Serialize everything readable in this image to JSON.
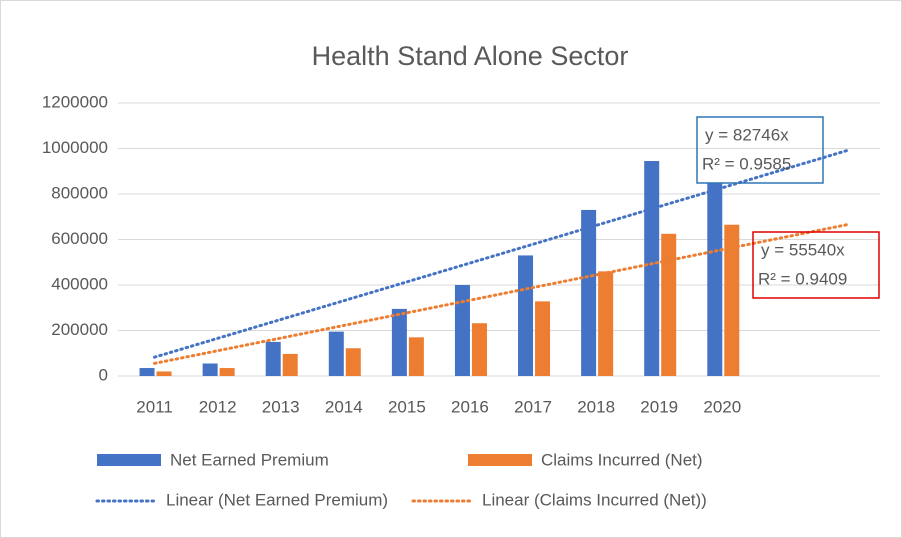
{
  "chart_data": {
    "type": "bar",
    "title": "Health Stand Alone Sector",
    "categories": [
      "2011",
      "2012",
      "2013",
      "2014",
      "2015",
      "2016",
      "2017",
      "2018",
      "2019",
      "2020",
      null,
      null
    ],
    "series": [
      {
        "name": "Net Earned Premium",
        "color": "#4472c4",
        "values": [
          35000,
          55000,
          150000,
          195000,
          295000,
          400000,
          530000,
          730000,
          945000,
          850000,
          null,
          null
        ]
      },
      {
        "name": "Claims Incurred (Net)",
        "color": "#ed7d31",
        "values": [
          20000,
          35000,
          97000,
          122000,
          170000,
          232000,
          328000,
          460000,
          625000,
          665000,
          null,
          null
        ]
      }
    ],
    "trendlines": [
      {
        "name": "Linear (Net Earned Premium)",
        "color": "#4472c4",
        "slope": 82746,
        "equation": "y = 82746x",
        "r2": "R² = 0.9585",
        "box_color": "#2e75b6"
      },
      {
        "name": "Linear (Claims Incurred (Net))",
        "color": "#ed7d31",
        "slope": 55540,
        "equation": "y = 55540x",
        "r2": "R² = 0.9409",
        "box_color": "#e00000"
      }
    ],
    "ylim": [
      0,
      1200000
    ],
    "yticks": [
      0,
      200000,
      400000,
      600000,
      800000,
      1000000,
      1200000
    ],
    "grid": true,
    "legend": "bottom"
  }
}
